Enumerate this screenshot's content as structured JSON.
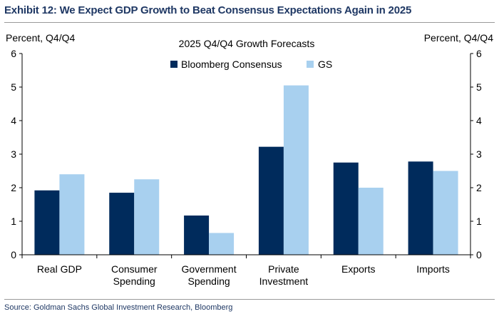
{
  "exhibit": {
    "title": "Exhibit 12: We Expect GDP Growth to Beat Consensus Expectations Again in 2025",
    "source": "Source: Goldman Sachs Global Investment Research, Bloomberg"
  },
  "chart_data": {
    "type": "bar",
    "title": "2025 Q4/Q4 Growth Forecasts",
    "ylabel_left": "Percent, Q4/Q4",
    "ylabel_right": "Percent, Q4/Q4",
    "ylim": [
      0,
      6
    ],
    "yticks": [
      0,
      1,
      2,
      3,
      4,
      5,
      6
    ],
    "grid": false,
    "legend_position": "top-center",
    "categories": [
      [
        "Real GDP"
      ],
      [
        "Consumer",
        "Spending"
      ],
      [
        "Government",
        "Spending"
      ],
      [
        "Private",
        "Investment"
      ],
      [
        "Exports"
      ],
      [
        "Imports"
      ]
    ],
    "series": [
      {
        "name": "Bloomberg Consensus",
        "color": "#002b5c",
        "values": [
          1.92,
          1.85,
          1.17,
          3.22,
          2.75,
          2.78
        ]
      },
      {
        "name": "GS",
        "color": "#a8d0ef",
        "values": [
          2.4,
          2.25,
          0.65,
          5.05,
          2.0,
          2.5
        ]
      }
    ]
  }
}
